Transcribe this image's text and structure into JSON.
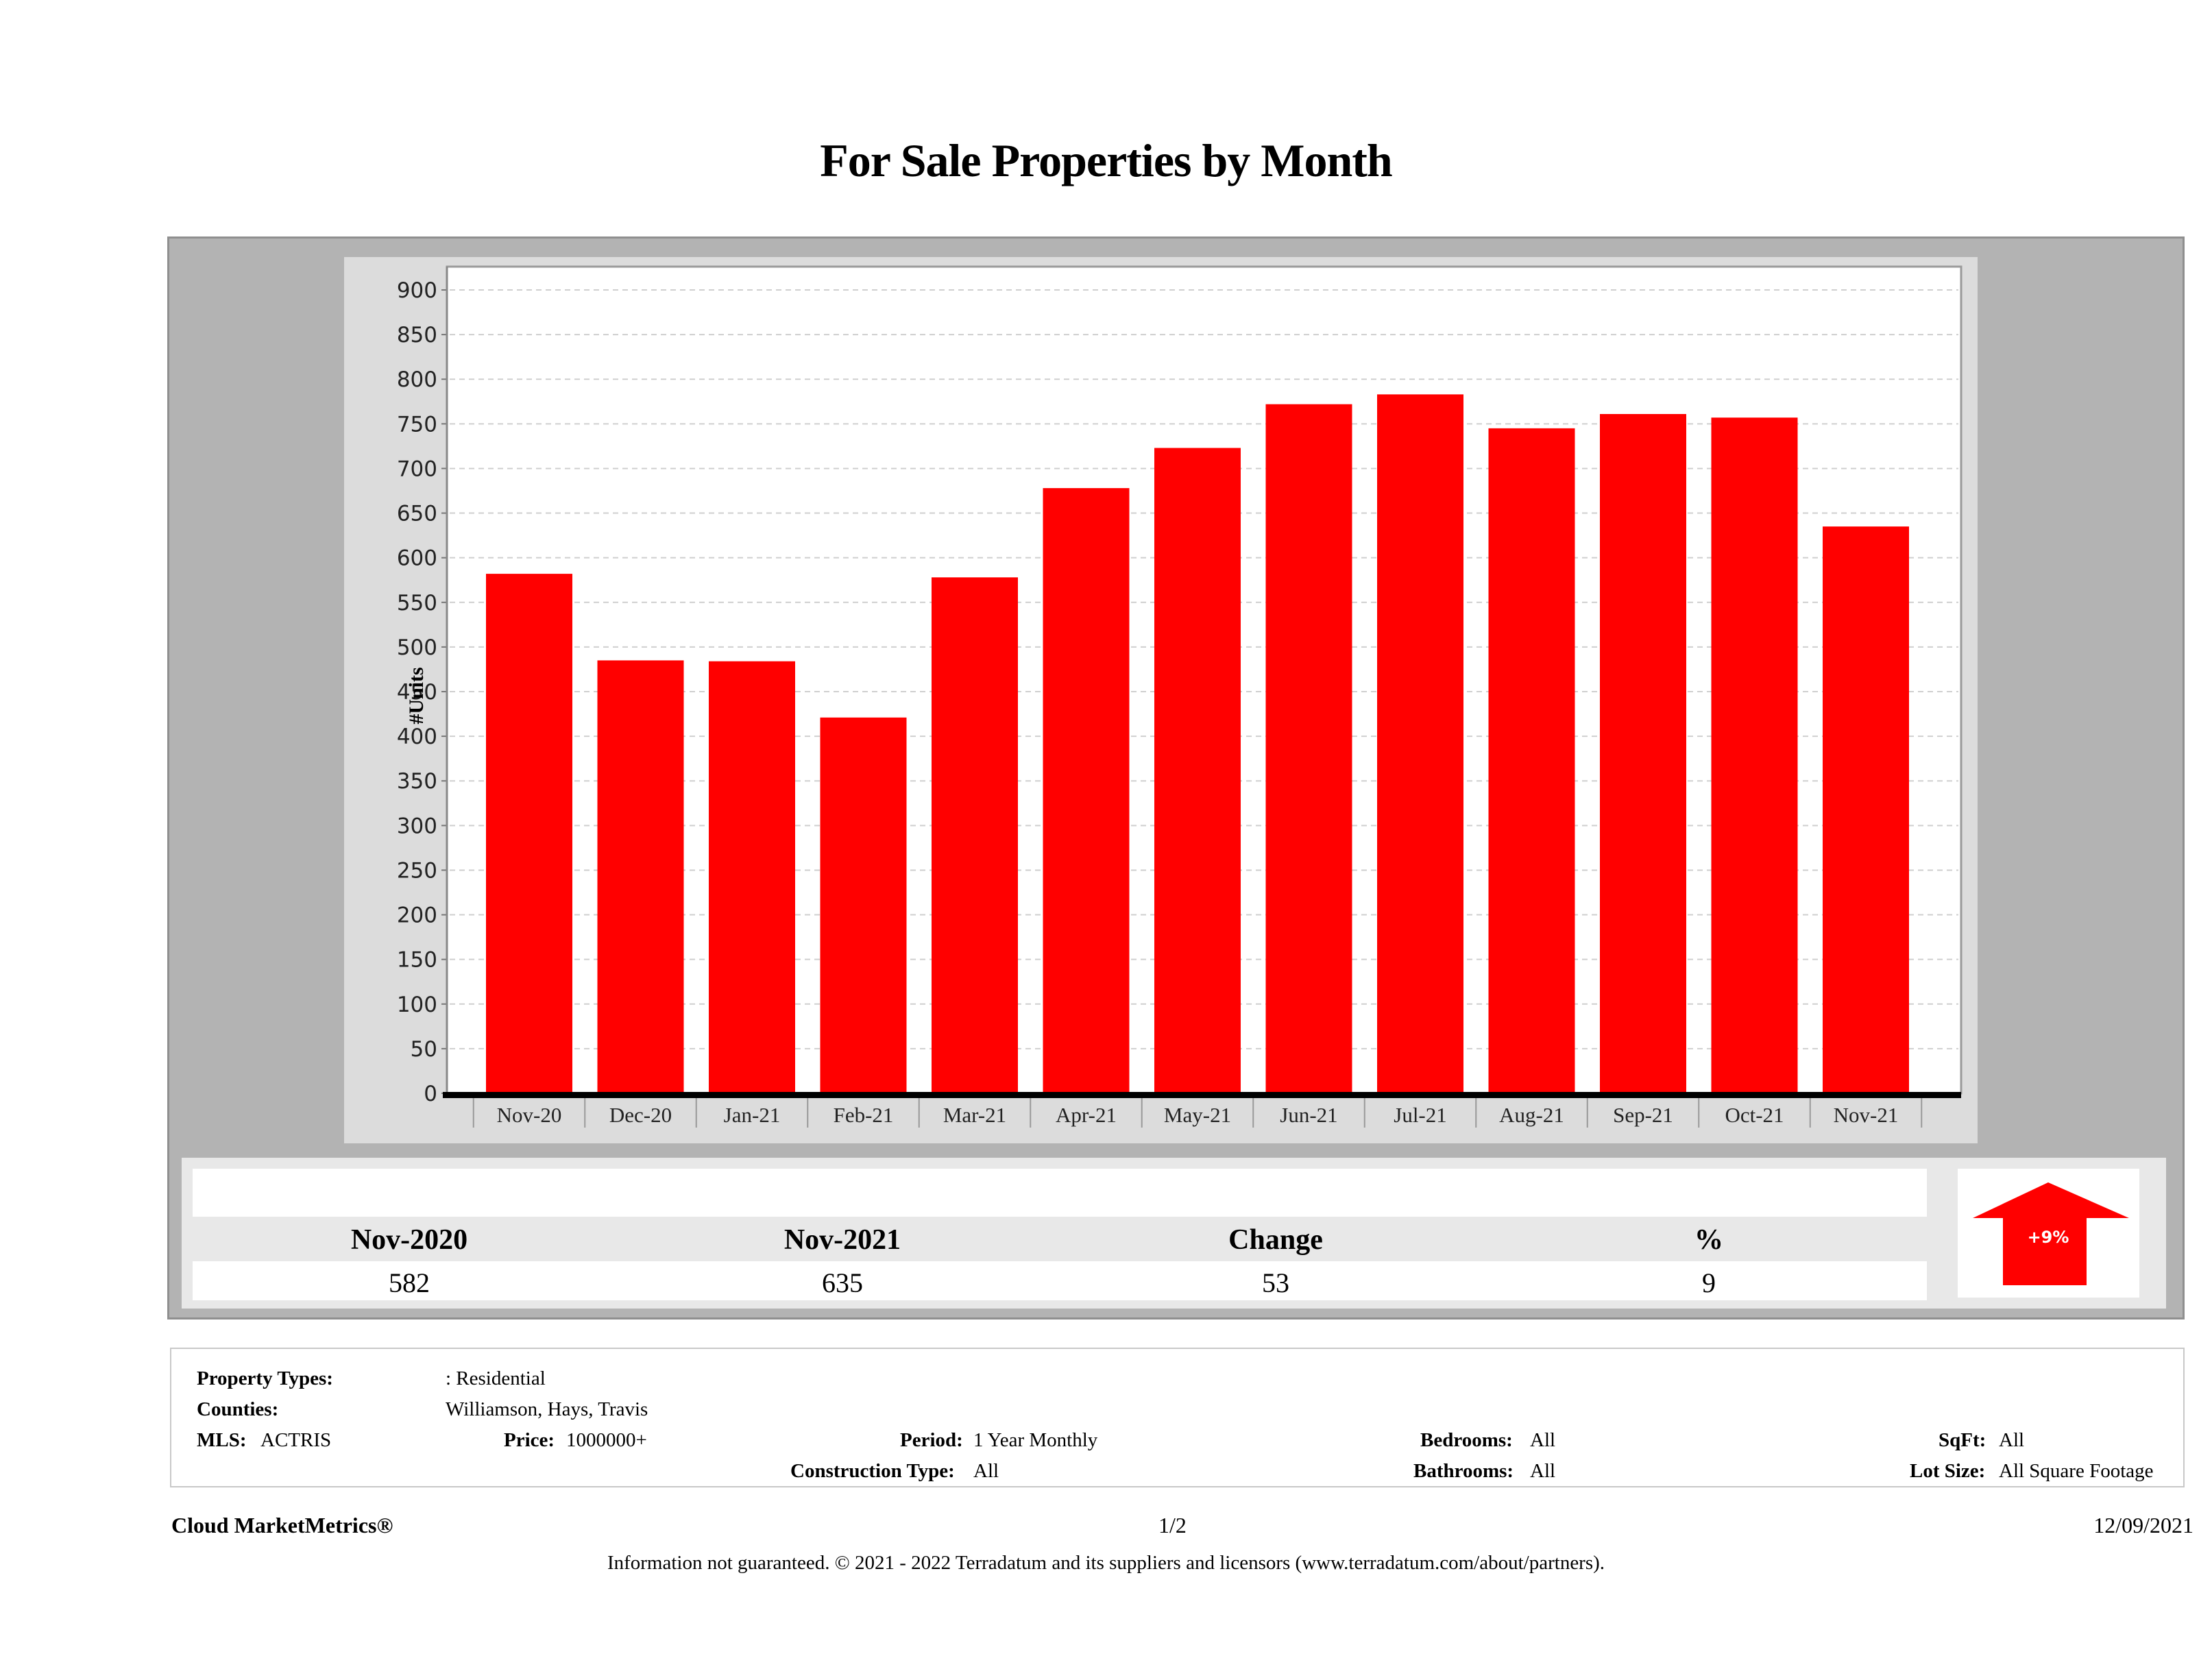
{
  "page_title": "For Sale Properties by Month",
  "chart_data": {
    "type": "bar",
    "title": "For Sale Properties by Month",
    "xlabel": "",
    "ylabel": "#Units",
    "ylim": [
      0,
      900
    ],
    "yticks": [
      0,
      50,
      100,
      150,
      200,
      250,
      300,
      350,
      400,
      450,
      500,
      550,
      600,
      650,
      700,
      750,
      800,
      850,
      900
    ],
    "grid": true,
    "categories": [
      "Nov-20",
      "Dec-20",
      "Jan-21",
      "Feb-21",
      "Mar-21",
      "Apr-21",
      "May-21",
      "Jun-21",
      "Jul-21",
      "Aug-21",
      "Sep-21",
      "Oct-21",
      "Nov-21"
    ],
    "values": [
      582,
      485,
      484,
      421,
      578,
      678,
      723,
      772,
      783,
      745,
      761,
      757,
      635
    ],
    "bar_color": "#ff0000"
  },
  "summary": {
    "headers": [
      "Nov-2020",
      "Nov-2021",
      "Change",
      "%"
    ],
    "values": [
      "582",
      "635",
      "53",
      "9"
    ],
    "badge": "+9%",
    "badge_color": "#ff0000",
    "direction": "up-arrow-icon"
  },
  "info": {
    "property_types_label": "Property Types:",
    "property_types_value": ": Residential",
    "counties_label": "Counties:",
    "counties_value": "Williamson, Hays, Travis",
    "mls_label": "MLS:",
    "mls_value": "ACTRIS",
    "price_label": "Price:",
    "price_value": "1000000+",
    "period_label": "Period:",
    "period_value": "1 Year Monthly",
    "construction_label": "Construction Type:",
    "construction_value": "All",
    "bedrooms_label": "Bedrooms:",
    "bedrooms_value": "All",
    "bathrooms_label": "Bathrooms:",
    "bathrooms_value": "All",
    "sqft_label": "SqFt:",
    "sqft_value": "All",
    "lotsize_label": "Lot Size:",
    "lotsize_value": "All Square Footage"
  },
  "footer": {
    "brand": "Cloud MarketMetrics®",
    "page": "1/2",
    "date": "12/09/2021",
    "disclaimer": "Information not guaranteed. © 2021 - 2022 Terradatum and its suppliers and licensors (www.terradatum.com/about/partners)."
  }
}
